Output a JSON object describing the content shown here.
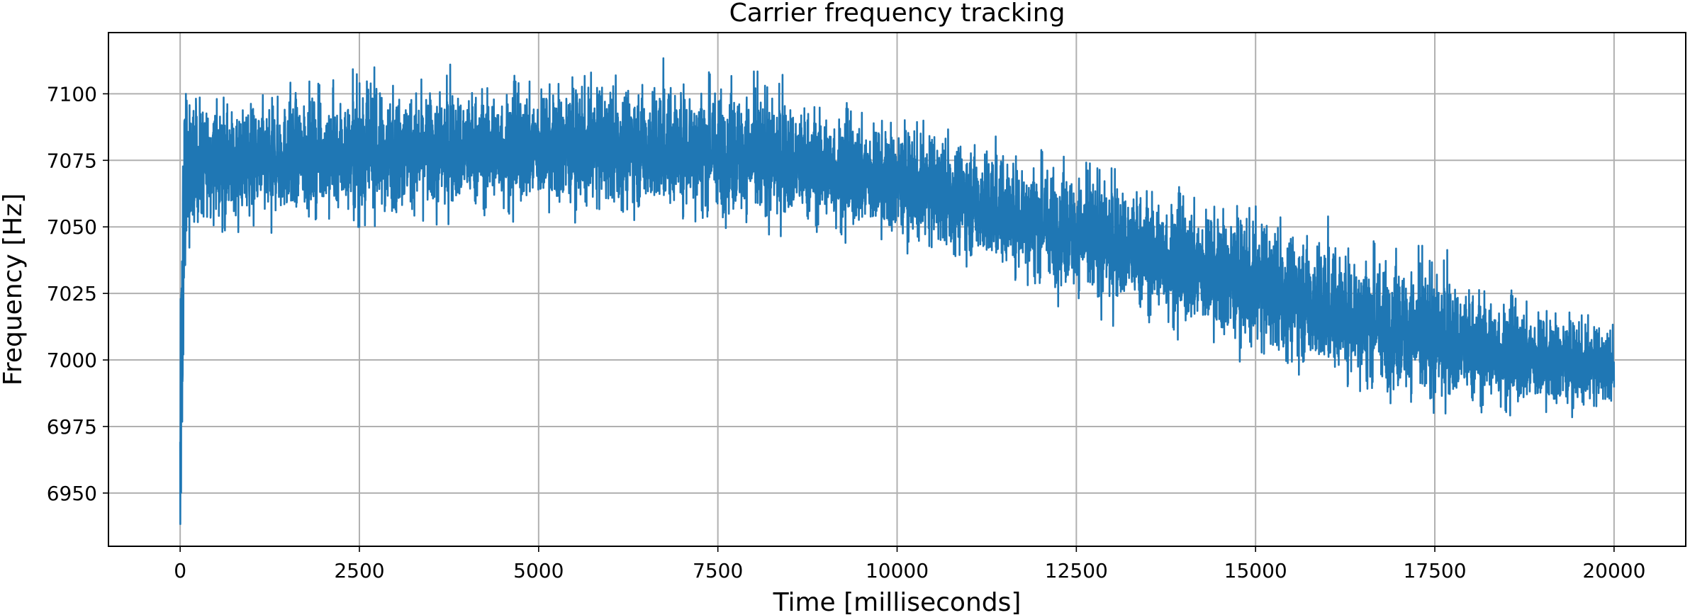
{
  "chart_data": {
    "type": "line",
    "title": "Carrier frequency tracking",
    "xlabel": "Time [milliseconds]",
    "ylabel": "Frequency [Hz]",
    "xlim": [
      -1000,
      21000
    ],
    "ylim": [
      6930,
      7123
    ],
    "xticks": [
      0,
      2500,
      5000,
      7500,
      10000,
      12500,
      15000,
      17500,
      20000
    ],
    "yticks": [
      6950,
      6975,
      7000,
      7025,
      7050,
      7075,
      7100
    ],
    "grid": true,
    "legend": "none",
    "series": [
      {
        "color": "#1f77b4",
        "trend": {
          "x": [
            0,
            20,
            40,
            60,
            80,
            100,
            150,
            250,
            500,
            1000,
            2000,
            3000,
            4000,
            5000,
            6000,
            7000,
            8000,
            9000,
            10000,
            11000,
            12000,
            13000,
            14000,
            15000,
            16000,
            17000,
            18000,
            19000,
            20000
          ],
          "y": [
            6950,
            6990,
            7035,
            7060,
            7068,
            7072,
            7073,
            7074,
            7074,
            7075,
            7077,
            7078,
            7079,
            7080,
            7080,
            7080,
            7077,
            7072,
            7067,
            7060,
            7052,
            7044,
            7036,
            7028,
            7020,
            7012,
            7005,
            7000,
            6997
          ]
        },
        "band": {
          "x": [
            0,
            100,
            500,
            2500,
            5000,
            7500,
            10000,
            12500,
            15000,
            17500,
            20000
          ],
          "upper": [
            7060,
            7110,
            7098,
            7110,
            7112,
            7114,
            7095,
            7075,
            7060,
            7045,
            7015
          ],
          "lower": [
            6936,
            7042,
            7045,
            7050,
            7052,
            7050,
            7040,
            7015,
            6995,
            6980,
            6978
          ]
        }
      }
    ]
  }
}
